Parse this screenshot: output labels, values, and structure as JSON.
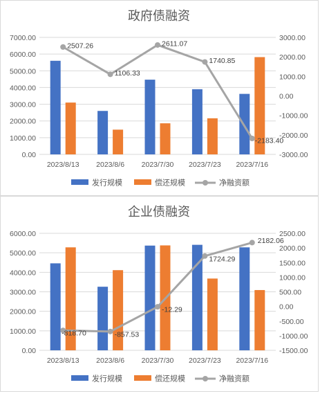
{
  "colors": {
    "issuance": "#4472C4",
    "repayment": "#ED7D31",
    "net": "#A5A5A5",
    "grid": "#D9D9D9",
    "text": "#595959"
  },
  "chart_data": [
    {
      "type": "bar",
      "title": "政府债融资",
      "categories": [
        "2023/8/13",
        "2023/8/6",
        "2023/7/30",
        "2023/7/23",
        "2023/7/16"
      ],
      "y_left": {
        "ylim": [
          0,
          7000
        ],
        "ticks": [
          "0.00",
          "1000.00",
          "2000.00",
          "3000.00",
          "4000.00",
          "5000.00",
          "6000.00",
          "7000.00"
        ]
      },
      "y_right": {
        "ylim": [
          -3000,
          3000
        ],
        "ticks": [
          "-3000.00",
          "-2000.00",
          "-1000.00",
          "0.00",
          "1000.00",
          "2000.00",
          "3000.00"
        ]
      },
      "series": [
        {
          "name": "发行规模",
          "type": "bar",
          "axis": "left",
          "values": [
            5600,
            2600,
            4470,
            3900,
            3620
          ]
        },
        {
          "name": "偿还规模",
          "type": "bar",
          "axis": "left",
          "values": [
            3100,
            1480,
            1860,
            2160,
            5820
          ]
        },
        {
          "name": "净融资额",
          "type": "line",
          "axis": "right",
          "values": [
            2507.26,
            1106.33,
            2611.07,
            1740.85,
            -2183.4
          ],
          "labels": [
            "2507.26",
            "1106.33",
            "2611.07",
            "1740.85",
            "-2183.40"
          ]
        }
      ],
      "legend": "bottom"
    },
    {
      "type": "bar",
      "title": "企业债融资",
      "categories": [
        "2023/8/13",
        "2023/8/6",
        "2023/7/30",
        "2023/7/23",
        "2023/7/16"
      ],
      "y_left": {
        "ylim": [
          0,
          6000
        ],
        "ticks": [
          "0.00",
          "1000.00",
          "2000.00",
          "3000.00",
          "4000.00",
          "5000.00",
          "6000.00"
        ]
      },
      "y_right": {
        "ylim": [
          -1500,
          2500
        ],
        "ticks": [
          "-1500.00",
          "-1000.00",
          "-500.00",
          "0.00",
          "500.00",
          "1000.00",
          "1500.00",
          "2000.00",
          "2500.00"
        ]
      },
      "series": [
        {
          "name": "发行规模",
          "type": "bar",
          "axis": "left",
          "values": [
            4460,
            3260,
            5370,
            5410,
            5280
          ]
        },
        {
          "name": "偿还规模",
          "type": "bar",
          "axis": "left",
          "values": [
            5280,
            4110,
            5380,
            3680,
            3090
          ]
        },
        {
          "name": "净融资额",
          "type": "line",
          "axis": "right",
          "values": [
            -818.7,
            -857.53,
            -12.29,
            1724.29,
            2182.06
          ],
          "labels": [
            "-818.70",
            "-857.53",
            "-12.29",
            "1724.29",
            "2182.06"
          ]
        }
      ],
      "legend": "bottom"
    }
  ]
}
